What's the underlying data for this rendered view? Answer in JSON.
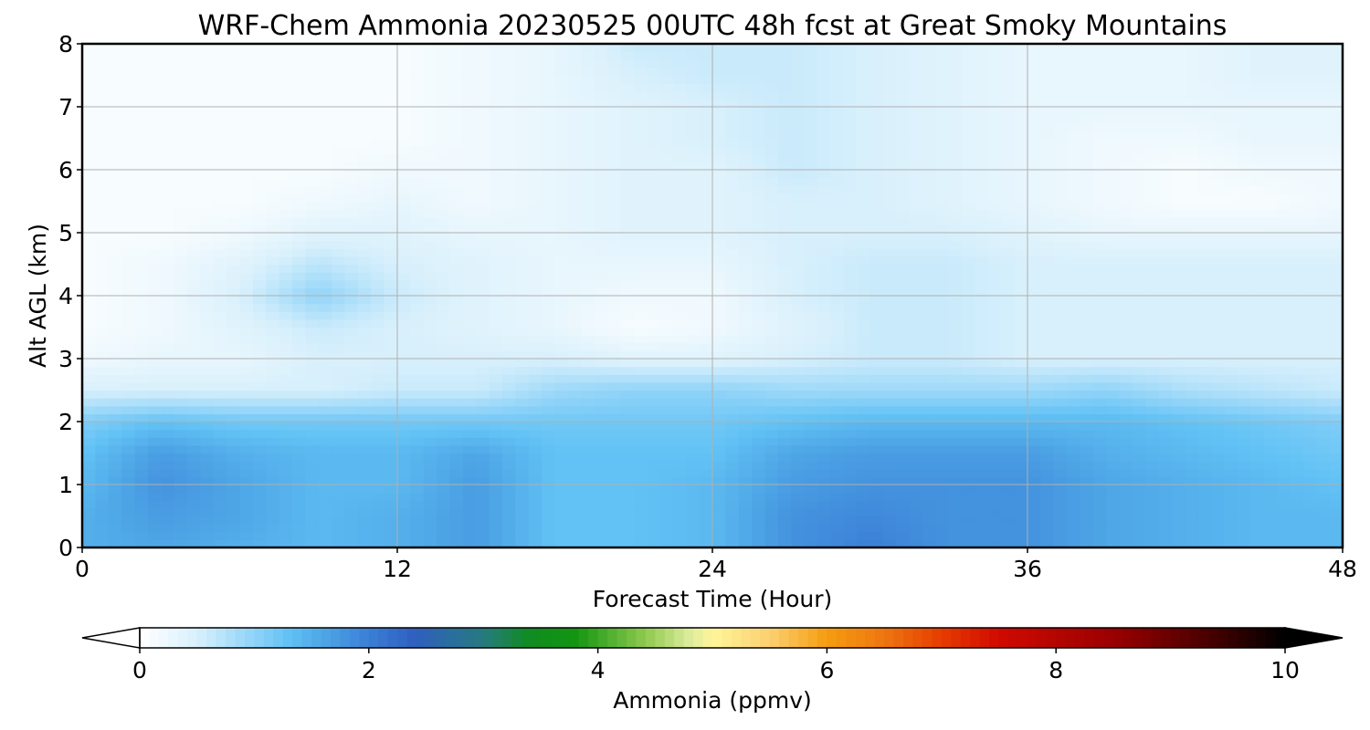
{
  "chart_data": {
    "type": "heatmap",
    "title": "WRF-Chem Ammonia  20230525 00UTC 48h fcst at Great Smoky Mountains",
    "xlabel": "Forecast Time (Hour)",
    "ylabel": "Alt AGL (km)",
    "xlim": [
      0,
      48
    ],
    "ylim": [
      0,
      8
    ],
    "x_ticks": [
      0,
      12,
      24,
      36,
      48
    ],
    "y_ticks": [
      0,
      1,
      2,
      3,
      4,
      5,
      6,
      7,
      8
    ],
    "grid": true,
    "x": [
      0,
      3,
      6,
      9,
      12,
      15,
      18,
      21,
      24,
      27,
      30,
      33,
      36,
      39,
      42,
      45,
      48
    ],
    "y": [
      0,
      0.5,
      1,
      1.5,
      2,
      2.5,
      3,
      3.5,
      4,
      4.5,
      5,
      5.5,
      6,
      6.5,
      7,
      7.5,
      8
    ],
    "z_units_note": "ppmv",
    "z": [
      [
        1.5,
        1.6,
        1.5,
        1.4,
        1.5,
        1.7,
        1.3,
        1.3,
        1.4,
        1.8,
        2.0,
        1.8,
        1.8,
        1.6,
        1.5,
        1.4,
        1.4
      ],
      [
        1.5,
        1.7,
        1.6,
        1.4,
        1.5,
        1.7,
        1.3,
        1.3,
        1.4,
        1.8,
        1.9,
        1.8,
        1.8,
        1.6,
        1.5,
        1.4,
        1.4
      ],
      [
        1.4,
        1.8,
        1.6,
        1.4,
        1.4,
        1.7,
        1.3,
        1.3,
        1.4,
        1.7,
        1.8,
        1.8,
        1.8,
        1.6,
        1.5,
        1.4,
        1.3
      ],
      [
        1.3,
        1.7,
        1.5,
        1.4,
        1.4,
        1.6,
        1.3,
        1.3,
        1.3,
        1.6,
        1.7,
        1.7,
        1.7,
        1.5,
        1.4,
        1.3,
        1.2
      ],
      [
        1.1,
        1.3,
        1.2,
        1.2,
        1.2,
        1.2,
        1.2,
        1.2,
        1.2,
        1.3,
        1.4,
        1.4,
        1.4,
        1.4,
        1.3,
        1.2,
        1.1
      ],
      [
        0.5,
        0.5,
        0.5,
        0.5,
        0.6,
        0.6,
        0.9,
        1.0,
        1.0,
        0.9,
        0.9,
        0.9,
        0.9,
        1.0,
        0.8,
        0.7,
        0.6
      ],
      [
        0.2,
        0.3,
        0.3,
        0.5,
        0.5,
        0.5,
        0.5,
        0.4,
        0.4,
        0.5,
        0.6,
        0.6,
        0.5,
        0.5,
        0.5,
        0.5,
        0.5
      ],
      [
        0.1,
        0.2,
        0.4,
        0.6,
        0.5,
        0.4,
        0.3,
        0.1,
        0.2,
        0.4,
        0.6,
        0.6,
        0.5,
        0.5,
        0.5,
        0.5,
        0.5
      ],
      [
        0.1,
        0.2,
        0.5,
        1.0,
        0.6,
        0.4,
        0.3,
        0.2,
        0.2,
        0.5,
        0.6,
        0.6,
        0.5,
        0.5,
        0.5,
        0.5,
        0.5
      ],
      [
        0.1,
        0.2,
        0.4,
        0.7,
        0.5,
        0.4,
        0.3,
        0.3,
        0.3,
        0.5,
        0.6,
        0.6,
        0.5,
        0.5,
        0.5,
        0.5,
        0.5
      ],
      [
        0.1,
        0.1,
        0.2,
        0.4,
        0.4,
        0.3,
        0.3,
        0.4,
        0.4,
        0.5,
        0.5,
        0.5,
        0.4,
        0.3,
        0.3,
        0.3,
        0.3
      ],
      [
        0.1,
        0.1,
        0.1,
        0.2,
        0.3,
        0.2,
        0.3,
        0.4,
        0.4,
        0.5,
        0.5,
        0.4,
        0.3,
        0.2,
        0.1,
        0.1,
        0.2
      ],
      [
        0.1,
        0.1,
        0.1,
        0.1,
        0.2,
        0.2,
        0.3,
        0.4,
        0.4,
        0.6,
        0.5,
        0.4,
        0.3,
        0.2,
        0.1,
        0.2,
        0.2
      ],
      [
        0.1,
        0.1,
        0.1,
        0.1,
        0.1,
        0.2,
        0.3,
        0.4,
        0.5,
        0.6,
        0.5,
        0.4,
        0.3,
        0.2,
        0.2,
        0.3,
        0.3
      ],
      [
        0.1,
        0.1,
        0.1,
        0.1,
        0.1,
        0.2,
        0.3,
        0.4,
        0.5,
        0.6,
        0.5,
        0.4,
        0.3,
        0.3,
        0.3,
        0.3,
        0.3
      ],
      [
        0.1,
        0.1,
        0.1,
        0.1,
        0.1,
        0.2,
        0.3,
        0.5,
        0.6,
        0.6,
        0.5,
        0.4,
        0.3,
        0.3,
        0.3,
        0.4,
        0.4
      ],
      [
        0.1,
        0.1,
        0.1,
        0.1,
        0.1,
        0.2,
        0.3,
        0.6,
        0.6,
        0.6,
        0.5,
        0.4,
        0.3,
        0.3,
        0.3,
        0.4,
        0.4
      ]
    ],
    "colorbar": {
      "label": "Ammonia  (ppmv)",
      "min": 0,
      "max": 10,
      "ticks": [
        0,
        2,
        4,
        6,
        8,
        10
      ],
      "extend": "both",
      "stops": [
        {
          "v": 0.0,
          "c": "#ffffff"
        },
        {
          "v": 0.5,
          "c": "#d8f0fc"
        },
        {
          "v": 1.0,
          "c": "#8fd3f8"
        },
        {
          "v": 1.3,
          "c": "#62c2f5"
        },
        {
          "v": 1.6,
          "c": "#4ea6e6"
        },
        {
          "v": 2.0,
          "c": "#3a7fd6"
        },
        {
          "v": 2.4,
          "c": "#2f5fc0"
        },
        {
          "v": 3.0,
          "c": "#267a80"
        },
        {
          "v": 3.4,
          "c": "#108c20"
        },
        {
          "v": 3.8,
          "c": "#139512"
        },
        {
          "v": 4.4,
          "c": "#8cc84c"
        },
        {
          "v": 4.8,
          "c": "#dcec9c"
        },
        {
          "v": 5.0,
          "c": "#fff59a"
        },
        {
          "v": 5.5,
          "c": "#fbd070"
        },
        {
          "v": 6.0,
          "c": "#f59c10"
        },
        {
          "v": 6.5,
          "c": "#ee7610"
        },
        {
          "v": 7.0,
          "c": "#e63c00"
        },
        {
          "v": 7.5,
          "c": "#d00a00"
        },
        {
          "v": 8.5,
          "c": "#9a0000"
        },
        {
          "v": 9.3,
          "c": "#4c0000"
        },
        {
          "v": 10.0,
          "c": "#000000"
        }
      ]
    }
  }
}
